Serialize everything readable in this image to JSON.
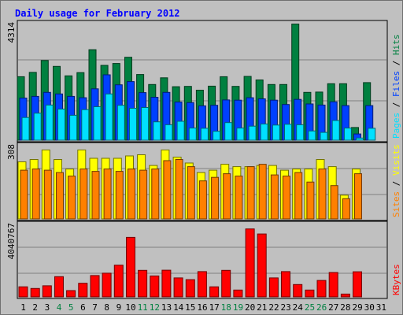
{
  "chart_data": [
    {
      "type": "bar",
      "title": "Daily usage for February 2012",
      "ymax_label": "4314",
      "ylim": [
        0,
        4314
      ],
      "categories": [
        "1",
        "2",
        "3",
        "4",
        "5",
        "6",
        "7",
        "8",
        "9",
        "10",
        "11",
        "12",
        "13",
        "14",
        "15",
        "16",
        "17",
        "18",
        "19",
        "20",
        "21",
        "22",
        "23",
        "24",
        "25",
        "26",
        "27",
        "28",
        "29",
        "30",
        "31"
      ],
      "weekend_days": [
        "4",
        "5",
        "11",
        "12",
        "18",
        "19",
        "25",
        "26"
      ],
      "legend": [
        "Pages",
        "Files",
        "Hits"
      ],
      "legend_separator": " / ",
      "series": [
        {
          "name": "Hits",
          "color": "#008040",
          "values": [
            2350,
            2510,
            2950,
            2730,
            2380,
            2500,
            3350,
            2770,
            2840,
            3070,
            2430,
            2060,
            2310,
            1980,
            1990,
            1850,
            2000,
            2350,
            1990,
            2360,
            2230,
            2060,
            2060,
            4300,
            1770,
            1780,
            2090,
            2090,
            470,
            2130,
            null
          ]
        },
        {
          "name": "Files",
          "color": "#0040ff",
          "values": [
            1560,
            1620,
            1770,
            1710,
            1620,
            1570,
            1900,
            2420,
            2050,
            2170,
            1760,
            1590,
            1770,
            1410,
            1390,
            1270,
            1290,
            1490,
            1480,
            1570,
            1530,
            1480,
            1320,
            1510,
            1340,
            1300,
            1420,
            1280,
            230,
            1280,
            null
          ]
        },
        {
          "name": "Pages",
          "color": "#00e0ff",
          "values": [
            840,
            1000,
            1300,
            1150,
            920,
            1130,
            1240,
            1710,
            1290,
            1180,
            1210,
            680,
            570,
            700,
            450,
            440,
            330,
            650,
            450,
            520,
            600,
            560,
            590,
            570,
            340,
            290,
            730,
            450,
            80,
            440,
            null
          ]
        }
      ]
    },
    {
      "type": "bar",
      "ymax_label": "308",
      "ylim": [
        0,
        308
      ],
      "categories": [
        "1",
        "2",
        "3",
        "4",
        "5",
        "6",
        "7",
        "8",
        "9",
        "10",
        "11",
        "12",
        "13",
        "14",
        "15",
        "16",
        "17",
        "18",
        "19",
        "20",
        "21",
        "22",
        "23",
        "24",
        "25",
        "26",
        "27",
        "28",
        "29",
        "30",
        "31"
      ],
      "legend": [
        "Sites",
        "Visits"
      ],
      "legend_separator": " / ",
      "series": [
        {
          "name": "Visits",
          "color": "#ffff00",
          "values": [
            240,
            250,
            290,
            250,
            210,
            290,
            255,
            255,
            255,
            265,
            270,
            225,
            290,
            260,
            235,
            195,
            205,
            230,
            220,
            220,
            225,
            225,
            205,
            210,
            210,
            250,
            220,
            100,
            210,
            null,
            null
          ]
        },
        {
          "name": "Sites",
          "color": "#ff8000",
          "values": [
            205,
            210,
            205,
            195,
            180,
            210,
            200,
            210,
            200,
            210,
            205,
            210,
            245,
            250,
            220,
            160,
            175,
            190,
            180,
            220,
            230,
            185,
            180,
            195,
            155,
            210,
            140,
            85,
            190,
            null,
            null
          ]
        }
      ]
    },
    {
      "type": "bar",
      "ymax_label": "4040767",
      "ylim": [
        0,
        4040767
      ],
      "categories": [
        "1",
        "2",
        "3",
        "4",
        "5",
        "6",
        "7",
        "8",
        "9",
        "10",
        "11",
        "12",
        "13",
        "14",
        "15",
        "16",
        "17",
        "18",
        "19",
        "20",
        "21",
        "22",
        "23",
        "24",
        "25",
        "26",
        "27",
        "28",
        "29",
        "30",
        "31"
      ],
      "legend": [
        "KBytes"
      ],
      "legend_separator": " / ",
      "series": [
        {
          "name": "KBytes",
          "color": "#ff0000",
          "values": [
            560000,
            470000,
            620000,
            1130000,
            350000,
            760000,
            1190000,
            1320000,
            1770000,
            3320000,
            1480000,
            1170000,
            1490000,
            1060000,
            960000,
            1410000,
            560000,
            1480000,
            380000,
            3790000,
            3510000,
            1060000,
            1410000,
            690000,
            380000,
            920000,
            1360000,
            160000,
            1400000,
            null,
            null
          ]
        }
      ]
    }
  ],
  "colors": {
    "background": "#c0c0c0",
    "title": "#0000ff",
    "weekday_label": "#000000",
    "weekend_label": "#008040",
    "gridline": "#808080"
  }
}
